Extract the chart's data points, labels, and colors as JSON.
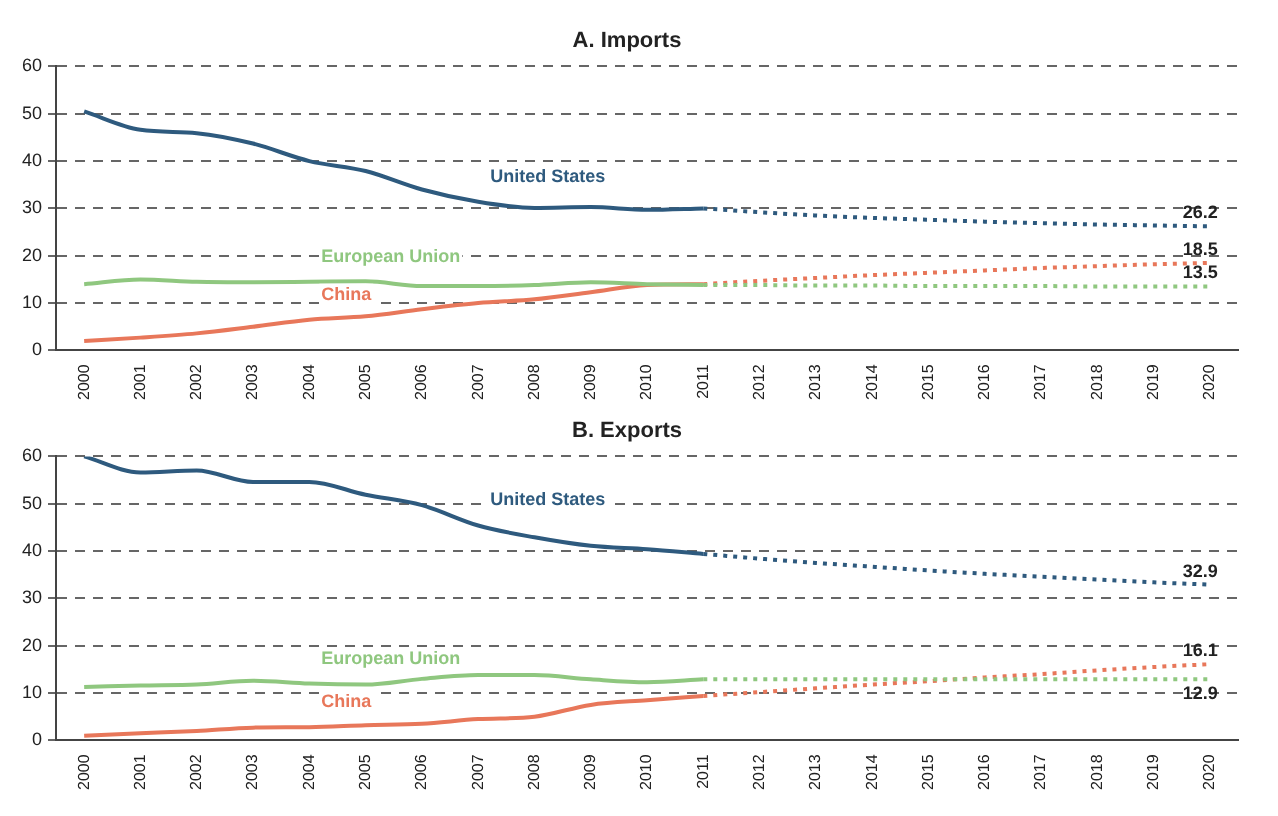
{
  "chart_data": [
    {
      "type": "line",
      "title": "A. Imports",
      "categories": [
        "2000",
        "2001",
        "2002",
        "2003",
        "2004",
        "2005",
        "2006",
        "2007",
        "2008",
        "2009",
        "2010",
        "2011",
        "2012",
        "2013",
        "2014",
        "2015",
        "2016",
        "2017",
        "2018",
        "2019",
        "2020"
      ],
      "ylim": [
        0,
        60
      ],
      "yticks": [
        0,
        10,
        20,
        30,
        40,
        50,
        60
      ],
      "grid": "y",
      "legend": false,
      "series": [
        {
          "name": "United States",
          "color": "#2e5a7e",
          "values": [
            50.5,
            46.6,
            45.9,
            43.7,
            40,
            37.9,
            34,
            31.4,
            30.1,
            30.3,
            29.7,
            30,
            null,
            null,
            null,
            null,
            null,
            null,
            null,
            null,
            null
          ]
        },
        {
          "color": "#2e5a7e",
          "line_style": "dotted",
          "values": [
            null,
            null,
            null,
            null,
            null,
            null,
            null,
            null,
            null,
            null,
            null,
            30,
            29.2,
            28.5,
            28,
            27.6,
            27.2,
            26.9,
            26.6,
            26.4,
            26.2
          ],
          "value_labels": [
            null,
            null,
            null,
            null,
            null,
            null,
            null,
            null,
            null,
            null,
            null,
            null,
            null,
            null,
            null,
            null,
            null,
            null,
            null,
            null,
            "26.2"
          ]
        },
        {
          "name": "European Union",
          "color": "#8fc77f",
          "values": [
            14,
            15,
            14.5,
            14.4,
            14.5,
            14.6,
            13.6,
            13.6,
            13.8,
            14.4,
            14,
            13.8,
            null,
            null,
            null,
            null,
            null,
            null,
            null,
            null,
            null
          ]
        },
        {
          "color": "#8fc77f",
          "line_style": "dotted",
          "values": [
            null,
            null,
            null,
            null,
            null,
            null,
            null,
            null,
            null,
            null,
            null,
            13.8,
            13.8,
            13.7,
            13.7,
            13.6,
            13.6,
            13.6,
            13.5,
            13.5,
            13.5
          ],
          "value_labels": [
            null,
            null,
            null,
            null,
            null,
            null,
            null,
            null,
            null,
            null,
            null,
            null,
            null,
            null,
            null,
            null,
            null,
            null,
            null,
            null,
            "13.5"
          ]
        },
        {
          "name": "China",
          "color": "#e8775a",
          "values": [
            2,
            2.7,
            3.6,
            5,
            6.5,
            7.2,
            8.7,
            10,
            10.8,
            12.3,
            13.8,
            14,
            null,
            null,
            null,
            null,
            null,
            null,
            null,
            null,
            null
          ]
        },
        {
          "color": "#e8775a",
          "line_style": "dotted",
          "values": [
            null,
            null,
            null,
            null,
            null,
            null,
            null,
            null,
            null,
            null,
            null,
            14,
            14.7,
            15.3,
            15.9,
            16.4,
            16.9,
            17.4,
            17.8,
            18.2,
            18.5
          ],
          "value_labels": [
            null,
            null,
            null,
            null,
            null,
            null,
            null,
            null,
            null,
            null,
            null,
            null,
            null,
            null,
            null,
            null,
            null,
            null,
            null,
            null,
            "18.5"
          ]
        }
      ]
    },
    {
      "type": "line",
      "title": "B. Exports",
      "categories": [
        "2000",
        "2001",
        "2002",
        "2003",
        "2004",
        "2005",
        "2006",
        "2007",
        "2008",
        "2009",
        "2010",
        "2011",
        "2012",
        "2013",
        "2014",
        "2015",
        "2016",
        "2017",
        "2018",
        "2019",
        "2020"
      ],
      "ylim": [
        0,
        60
      ],
      "yticks": [
        0,
        10,
        20,
        30,
        40,
        50,
        60
      ],
      "grid": "y",
      "legend": false,
      "series": [
        {
          "name": "United States",
          "color": "#2e5a7e",
          "values": [
            60,
            56.6,
            57,
            54.6,
            54.6,
            51.9,
            49.7,
            45.4,
            42.9,
            41.1,
            40.4,
            39.4,
            null,
            null,
            null,
            null,
            null,
            null,
            null,
            null,
            null
          ]
        },
        {
          "color": "#2e5a7e",
          "line_style": "dotted",
          "values": [
            null,
            null,
            null,
            null,
            null,
            null,
            null,
            null,
            null,
            null,
            null,
            39.4,
            38.4,
            37.5,
            36.7,
            35.9,
            35.2,
            34.6,
            34,
            33.4,
            32.9
          ],
          "value_labels": [
            null,
            null,
            null,
            null,
            null,
            null,
            null,
            null,
            null,
            null,
            null,
            null,
            null,
            null,
            null,
            null,
            null,
            null,
            null,
            null,
            "32.9"
          ]
        },
        {
          "name": "European Union",
          "color": "#8fc77f",
          "values": [
            11.3,
            11.6,
            11.8,
            12.6,
            12,
            11.8,
            13,
            13.8,
            13.8,
            12.9,
            12.3,
            12.9,
            null,
            null,
            null,
            null,
            null,
            null,
            null,
            null,
            null
          ]
        },
        {
          "color": "#8fc77f",
          "line_style": "dotted",
          "values": [
            null,
            null,
            null,
            null,
            null,
            null,
            null,
            null,
            null,
            null,
            null,
            12.9,
            12.9,
            12.9,
            12.9,
            12.9,
            12.9,
            12.9,
            12.9,
            12.9,
            12.9
          ],
          "value_labels": [
            null,
            null,
            null,
            null,
            null,
            null,
            null,
            null,
            null,
            null,
            null,
            null,
            null,
            null,
            null,
            null,
            null,
            null,
            null,
            null,
            "12.9"
          ]
        },
        {
          "name": "China",
          "color": "#e8775a",
          "values": [
            1,
            1.5,
            2,
            2.7,
            2.8,
            3.2,
            3.5,
            4.5,
            5,
            7.5,
            8.5,
            9.4,
            null,
            null,
            null,
            null,
            null,
            null,
            null,
            null,
            null
          ]
        },
        {
          "color": "#e8775a",
          "line_style": "dotted",
          "values": [
            null,
            null,
            null,
            null,
            null,
            null,
            null,
            null,
            null,
            null,
            null,
            9.4,
            10.2,
            11,
            11.8,
            12.5,
            13.3,
            14,
            14.8,
            15.5,
            16.1
          ],
          "value_labels": [
            null,
            null,
            null,
            null,
            null,
            null,
            null,
            null,
            null,
            null,
            null,
            null,
            null,
            null,
            null,
            null,
            null,
            null,
            null,
            null,
            "16.1"
          ]
        }
      ]
    }
  ]
}
